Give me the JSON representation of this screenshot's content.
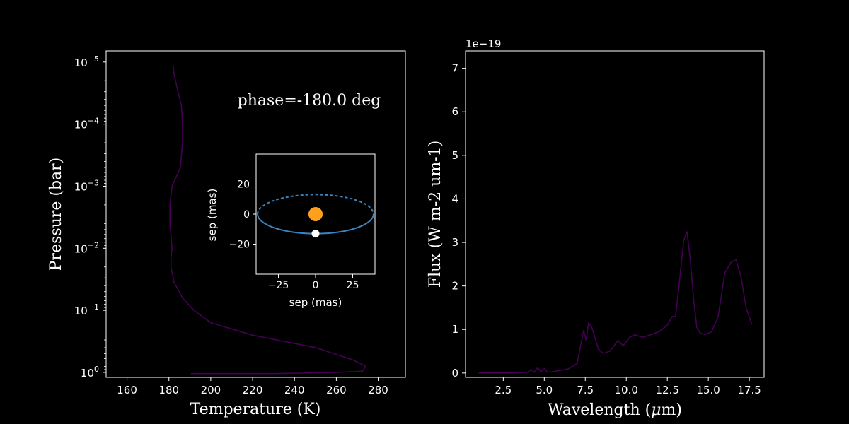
{
  "chart_data": [
    {
      "type": "line",
      "panel": "temperature-pressure profile",
      "xlabel": "Temperature (K)",
      "ylabel": "Pressure (bar)",
      "xlim": [
        150,
        293
      ],
      "ylim_log10": [
        0.08,
        -5.18
      ],
      "y_scale": "log, inverted",
      "xticks": [
        160,
        180,
        200,
        220,
        240,
        260,
        280
      ],
      "xtick_labels": [
        "160",
        "180",
        "200",
        "220",
        "240",
        "260",
        "280"
      ],
      "yticks_log10": [
        0,
        -1,
        -2,
        -3,
        -4,
        -5
      ],
      "ytick_labels": [
        "10^0",
        "10^-1",
        "10^-2",
        "10^-3",
        "10^-4",
        "10^-5"
      ],
      "line_color": "#440154",
      "annotation": "phase=-180.0 deg",
      "series": [
        {
          "x": [
            182,
            182.5,
            184.5,
            186,
            186.5,
            186.5,
            185.5,
            181.5,
            180.5,
            180.5,
            181.5,
            181,
            181,
            182.5,
            186.5,
            192,
            200,
            220,
            250,
            268,
            274,
            272.5,
            260,
            230,
            190.5
          ],
          "log10_p": [
            -4.95,
            -4.8,
            -4.5,
            -4.3,
            -4.0,
            -3.7,
            -3.3,
            -3.0,
            -2.7,
            -2.4,
            -2.0,
            -1.85,
            -1.7,
            -1.45,
            -1.2,
            -1.0,
            -0.8,
            -0.6,
            -0.4,
            -0.2,
            -0.1,
            -0.02,
            0.0,
            0.02,
            0.02
          ]
        }
      ],
      "inset": {
        "xlabel": "sep (mas)",
        "ylabel": "sep (mas)",
        "xlim": [
          -40,
          40
        ],
        "ylim": [
          -40,
          40
        ],
        "xticks": [
          -25,
          0,
          25
        ],
        "xtick_labels": [
          "−25",
          "0",
          "25"
        ],
        "yticks": [
          20,
          0,
          -20
        ],
        "ytick_labels": [
          "20",
          "0",
          "−20"
        ],
        "orbit": {
          "semi_major": 39,
          "semi_minor": 13,
          "near_side": "solid",
          "far_side": "dashed",
          "color": "#3b84c4"
        },
        "star": {
          "x": 0,
          "y": 0,
          "color": "#ff9f1c"
        },
        "planet": {
          "x": 0,
          "y": -13,
          "color": "#ffffff"
        }
      }
    },
    {
      "type": "line",
      "panel": "emission spectrum",
      "xlabel": "Wavelength ($\\mu$m)",
      "xlabel_main": "Wavelength (",
      "xlabel_mu": "μ",
      "xlabel_end": "m)",
      "ylabel": "Flux (W m-2 um-1)",
      "offset_label": "1e−19",
      "xlim": [
        0.2,
        18.4
      ],
      "ylim": [
        -0.1,
        7.4
      ],
      "xticks": [
        2.5,
        5.0,
        7.5,
        10.0,
        12.5,
        15.0,
        17.5
      ],
      "xtick_labels": [
        "2.5",
        "5.0",
        "7.5",
        "10.0",
        "12.5",
        "15.0",
        "17.5"
      ],
      "yticks": [
        0,
        1,
        2,
        3,
        4,
        5,
        6,
        7
      ],
      "ytick_labels": [
        "0",
        "1",
        "2",
        "3",
        "4",
        "5",
        "6",
        "7"
      ],
      "line_color": "#440154",
      "series": [
        {
          "x": [
            1.0,
            2.0,
            3.0,
            4.0,
            4.2,
            4.4,
            4.6,
            4.8,
            5.0,
            5.2,
            5.5,
            6.0,
            6.5,
            7.0,
            7.2,
            7.4,
            7.55,
            7.7,
            7.9,
            8.1,
            8.3,
            8.6,
            9.0,
            9.5,
            9.8,
            10.2,
            10.5,
            11.0,
            11.5,
            12.0,
            12.5,
            12.8,
            13.0,
            13.2,
            13.5,
            13.7,
            13.9,
            14.1,
            14.3,
            14.5,
            14.8,
            15.2,
            15.6,
            16.0,
            16.4,
            16.7,
            17.0,
            17.3,
            17.65
          ],
          "y": [
            0.0,
            0.0,
            0.0,
            0.02,
            0.08,
            0.02,
            0.12,
            0.03,
            0.1,
            0.02,
            0.03,
            0.06,
            0.1,
            0.22,
            0.6,
            0.98,
            0.75,
            1.15,
            1.05,
            0.8,
            0.55,
            0.45,
            0.5,
            0.75,
            0.62,
            0.82,
            0.88,
            0.82,
            0.88,
            0.95,
            1.1,
            1.3,
            1.3,
            1.95,
            3.05,
            3.25,
            2.6,
            1.7,
            1.05,
            0.92,
            0.88,
            0.95,
            1.3,
            2.3,
            2.55,
            2.6,
            2.2,
            1.5,
            1.12
          ]
        }
      ]
    }
  ]
}
